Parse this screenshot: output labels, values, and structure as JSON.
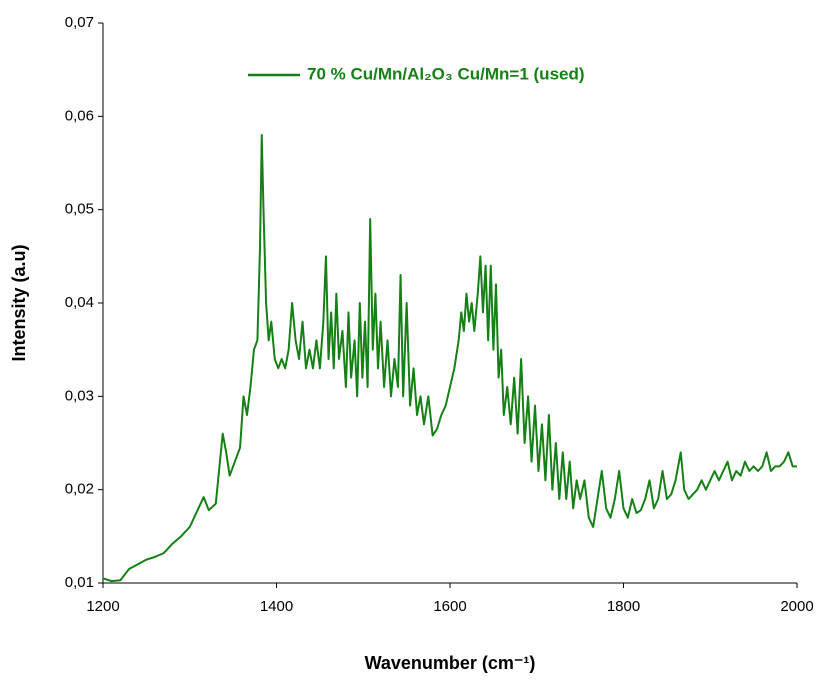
{
  "chart_data": {
    "type": "line",
    "xlabel": "Wavenumber (cm⁻¹)",
    "ylabel": "Intensity (a.u)",
    "xlim": [
      1200,
      2000
    ],
    "ylim": [
      0.01,
      0.07
    ],
    "xticks": [
      1200,
      1400,
      1600,
      1800,
      2000
    ],
    "yticks": [
      {
        "value": 0.01,
        "label": "0,01"
      },
      {
        "value": 0.02,
        "label": "0,02"
      },
      {
        "value": 0.03,
        "label": "0,03"
      },
      {
        "value": 0.04,
        "label": "0,04"
      },
      {
        "value": 0.05,
        "label": "0,05"
      },
      {
        "value": 0.06,
        "label": "0,06"
      },
      {
        "value": 0.07,
        "label": "0,07"
      }
    ],
    "x": [
      1200,
      1210,
      1220,
      1230,
      1240,
      1250,
      1260,
      1270,
      1280,
      1290,
      1300,
      1310,
      1316,
      1322,
      1330,
      1338,
      1342,
      1346,
      1352,
      1358,
      1362,
      1366,
      1370,
      1374,
      1378,
      1381,
      1383,
      1385,
      1388,
      1391,
      1394,
      1398,
      1402,
      1406,
      1410,
      1414,
      1418,
      1422,
      1426,
      1430,
      1434,
      1438,
      1442,
      1446,
      1450,
      1454,
      1457,
      1460,
      1463,
      1466,
      1469,
      1472,
      1476,
      1480,
      1483,
      1486,
      1490,
      1493,
      1496,
      1499,
      1502,
      1505,
      1508,
      1511,
      1514,
      1517,
      1520,
      1524,
      1528,
      1532,
      1536,
      1540,
      1543,
      1546,
      1550,
      1554,
      1558,
      1562,
      1566,
      1570,
      1575,
      1580,
      1585,
      1590,
      1595,
      1600,
      1605,
      1610,
      1613,
      1616,
      1619,
      1622,
      1625,
      1628,
      1632,
      1635,
      1638,
      1641,
      1644,
      1647,
      1650,
      1653,
      1656,
      1659,
      1662,
      1666,
      1670,
      1674,
      1678,
      1682,
      1686,
      1690,
      1694,
      1698,
      1702,
      1706,
      1710,
      1714,
      1718,
      1722,
      1726,
      1730,
      1734,
      1738,
      1742,
      1746,
      1750,
      1755,
      1760,
      1765,
      1770,
      1775,
      1780,
      1785,
      1790,
      1795,
      1800,
      1805,
      1810,
      1815,
      1820,
      1825,
      1830,
      1835,
      1840,
      1845,
      1850,
      1855,
      1860,
      1866,
      1870,
      1875,
      1880,
      1885,
      1890,
      1895,
      1900,
      1905,
      1910,
      1915,
      1920,
      1925,
      1930,
      1935,
      1940,
      1945,
      1950,
      1955,
      1960,
      1965,
      1970,
      1975,
      1980,
      1985,
      1990,
      1995,
      2000
    ],
    "series": [
      {
        "name": "70 % Cu/Mn/Al₂O₃ Cu/Mn=1 (used)",
        "color": "#158015",
        "values": [
          0.0105,
          0.0102,
          0.0103,
          0.0115,
          0.012,
          0.0125,
          0.0128,
          0.0132,
          0.0142,
          0.015,
          0.016,
          0.018,
          0.0192,
          0.0178,
          0.0185,
          0.026,
          0.024,
          0.0215,
          0.023,
          0.0245,
          0.03,
          0.028,
          0.031,
          0.035,
          0.036,
          0.046,
          0.058,
          0.05,
          0.04,
          0.036,
          0.038,
          0.034,
          0.033,
          0.034,
          0.033,
          0.035,
          0.04,
          0.036,
          0.034,
          0.038,
          0.033,
          0.035,
          0.033,
          0.036,
          0.033,
          0.038,
          0.045,
          0.034,
          0.039,
          0.033,
          0.041,
          0.034,
          0.037,
          0.031,
          0.039,
          0.032,
          0.036,
          0.03,
          0.04,
          0.032,
          0.038,
          0.031,
          0.049,
          0.035,
          0.041,
          0.033,
          0.038,
          0.031,
          0.036,
          0.03,
          0.034,
          0.031,
          0.043,
          0.03,
          0.04,
          0.029,
          0.033,
          0.028,
          0.03,
          0.027,
          0.03,
          0.0258,
          0.0265,
          0.028,
          0.029,
          0.031,
          0.033,
          0.036,
          0.039,
          0.037,
          0.041,
          0.038,
          0.04,
          0.037,
          0.041,
          0.045,
          0.039,
          0.044,
          0.036,
          0.044,
          0.035,
          0.042,
          0.032,
          0.035,
          0.028,
          0.031,
          0.027,
          0.032,
          0.026,
          0.034,
          0.025,
          0.03,
          0.023,
          0.029,
          0.022,
          0.027,
          0.021,
          0.028,
          0.02,
          0.025,
          0.019,
          0.024,
          0.019,
          0.023,
          0.018,
          0.021,
          0.019,
          0.021,
          0.017,
          0.016,
          0.019,
          0.022,
          0.018,
          0.017,
          0.019,
          0.022,
          0.018,
          0.017,
          0.019,
          0.0175,
          0.0178,
          0.019,
          0.021,
          0.018,
          0.019,
          0.022,
          0.019,
          0.0195,
          0.021,
          0.024,
          0.02,
          0.019,
          0.0195,
          0.02,
          0.021,
          0.02,
          0.021,
          0.022,
          0.021,
          0.022,
          0.023,
          0.021,
          0.022,
          0.0215,
          0.023,
          0.022,
          0.0225,
          0.022,
          0.0225,
          0.024,
          0.022,
          0.0225,
          0.0225,
          0.023,
          0.024,
          0.0225,
          0.0225
        ]
      }
    ]
  }
}
